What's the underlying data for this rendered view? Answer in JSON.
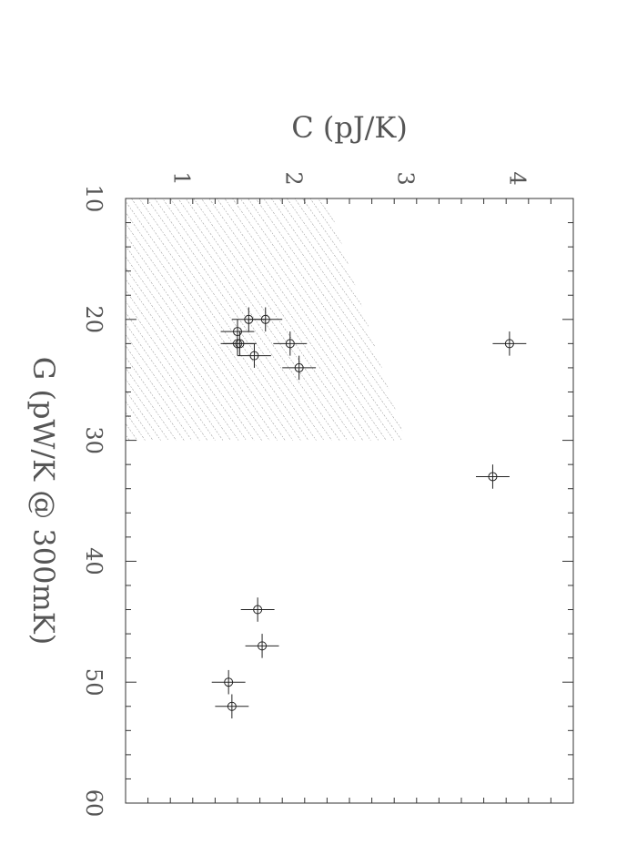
{
  "chart_data": {
    "type": "scatter",
    "title": "",
    "orientation": "rotated-90-clockwise",
    "xlabel": "G (pW/K @ 300mK)",
    "ylabel": "C (pJ/K)",
    "xlim": [
      10,
      60
    ],
    "ylim": [
      0.5,
      4.5
    ],
    "x_ticks": [
      "10",
      "20",
      "30",
      "40",
      "50",
      "60"
    ],
    "y_ticks": [
      "1",
      "2",
      "3",
      "4"
    ],
    "grid": false,
    "legend": "none",
    "shaded_region": {
      "style": "hatched",
      "vertices": [
        [
          10,
          0.5
        ],
        [
          10,
          2.3
        ],
        [
          30,
          3.0
        ],
        [
          30,
          0.5
        ]
      ]
    },
    "points": [
      {
        "x": 20.0,
        "y": 1.6,
        "xerr": 1.0,
        "yerr": 0.15
      },
      {
        "x": 20.0,
        "y": 1.75,
        "xerr": 1.0,
        "yerr": 0.15
      },
      {
        "x": 21.0,
        "y": 1.5,
        "xerr": 1.0,
        "yerr": 0.15
      },
      {
        "x": 22.0,
        "y": 1.5,
        "xerr": 1.0,
        "yerr": 0.15
      },
      {
        "x": 22.0,
        "y": 1.52,
        "xerr": 1.0,
        "yerr": 0.15
      },
      {
        "x": 22.0,
        "y": 1.97,
        "xerr": 1.0,
        "yerr": 0.15
      },
      {
        "x": 23.0,
        "y": 1.65,
        "xerr": 1.0,
        "yerr": 0.15
      },
      {
        "x": 24.0,
        "y": 2.05,
        "xerr": 1.0,
        "yerr": 0.15
      },
      {
        "x": 22.0,
        "y": 3.93,
        "xerr": 1.0,
        "yerr": 0.15
      },
      {
        "x": 33.0,
        "y": 3.78,
        "xerr": 1.0,
        "yerr": 0.15
      },
      {
        "x": 44.0,
        "y": 1.68,
        "xerr": 1.0,
        "yerr": 0.15
      },
      {
        "x": 47.0,
        "y": 1.72,
        "xerr": 1.0,
        "yerr": 0.15
      },
      {
        "x": 50.0,
        "y": 1.42,
        "xerr": 1.0,
        "yerr": 0.15
      },
      {
        "x": 52.0,
        "y": 1.45,
        "xerr": 1.0,
        "yerr": 0.15
      }
    ]
  }
}
